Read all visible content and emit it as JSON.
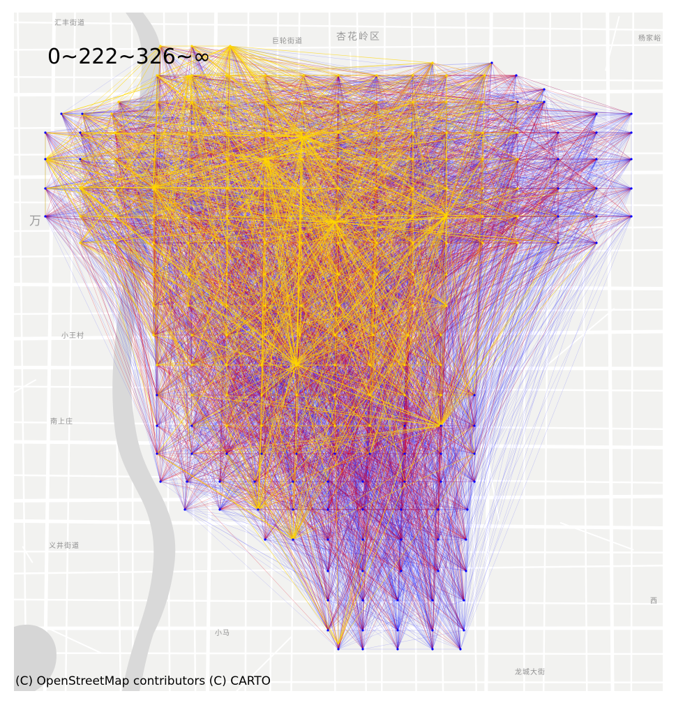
{
  "map": {
    "title": "0~222~326~∞",
    "attribution": "(C) OpenStreetMap contributors (C) CARTO",
    "base_labels": {
      "label_1": "汇丰街道",
      "label_2": "巨轮街道",
      "label_3": "杏花岭区",
      "label_4": "杨家峪",
      "label_5": "万",
      "label_6": "小王村",
      "label_7": "南上庄",
      "label_8": "义井街道",
      "label_9": "小马",
      "label_10": "西",
      "label_11": "龙城大街"
    },
    "edge_classes": [
      {
        "range": "0~222",
        "color": "#ffd700"
      },
      {
        "range": "222~326",
        "color": "#e0001c"
      },
      {
        "range": "326~∞",
        "color": "#0000ff"
      }
    ],
    "colors": {
      "background": "#f2f2f0",
      "roads": "#ffffff",
      "river": "#d6d6d6",
      "text": "#000000"
    }
  }
}
